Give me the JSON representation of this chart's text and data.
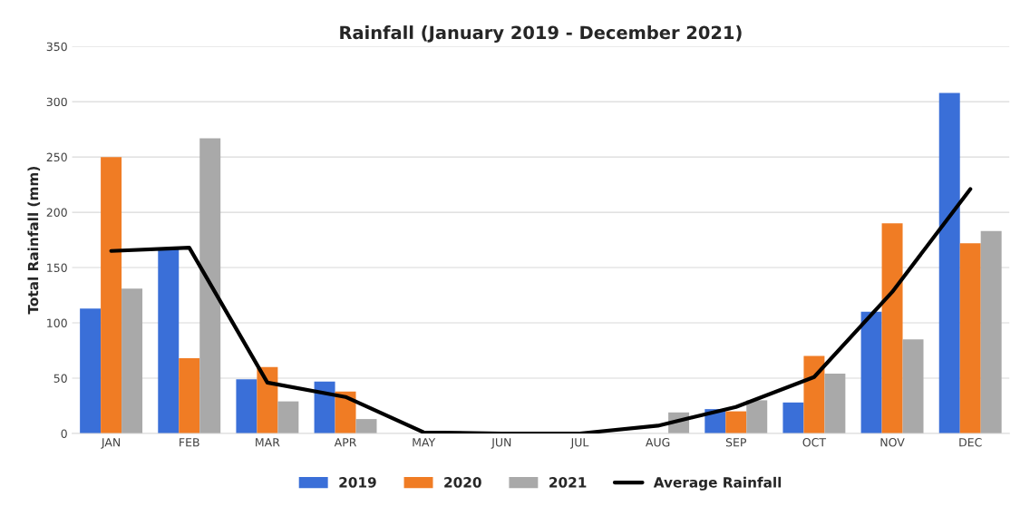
{
  "chart_data": {
    "type": "bar",
    "title": "Rainfall (January 2019 - December 2021)",
    "ylabel": "Total Rainfall (mm)",
    "categories": [
      "JAN",
      "FEB",
      "MAR",
      "APR",
      "MAY",
      "JUN",
      "JUL",
      "AUG",
      "SEP",
      "OCT",
      "NOV",
      "DEC"
    ],
    "series": [
      {
        "name": "2019",
        "color": "#3a6fd8",
        "values": [
          113,
          167,
          49,
          47,
          0,
          0,
          0,
          0,
          22,
          28,
          110,
          308
        ]
      },
      {
        "name": "2020",
        "color": "#f07c24",
        "values": [
          250,
          68,
          60,
          38,
          0,
          0,
          0,
          0,
          20,
          70,
          190,
          172
        ]
      },
      {
        "name": "2021",
        "color": "#a9a9a9",
        "values": [
          131,
          267,
          29,
          13,
          null,
          0,
          0,
          19,
          30,
          54,
          85,
          183
        ]
      },
      {
        "name": "Average Rainfall",
        "type": "line",
        "color": "#000000",
        "values": [
          165,
          168,
          46,
          33,
          1,
          0,
          0,
          7,
          24,
          51,
          128,
          221
        ]
      }
    ],
    "ylim": [
      0,
      350
    ],
    "yticks": [
      0,
      50,
      100,
      150,
      200,
      250,
      300,
      350
    ],
    "grid": "y",
    "legend": "bottom"
  }
}
